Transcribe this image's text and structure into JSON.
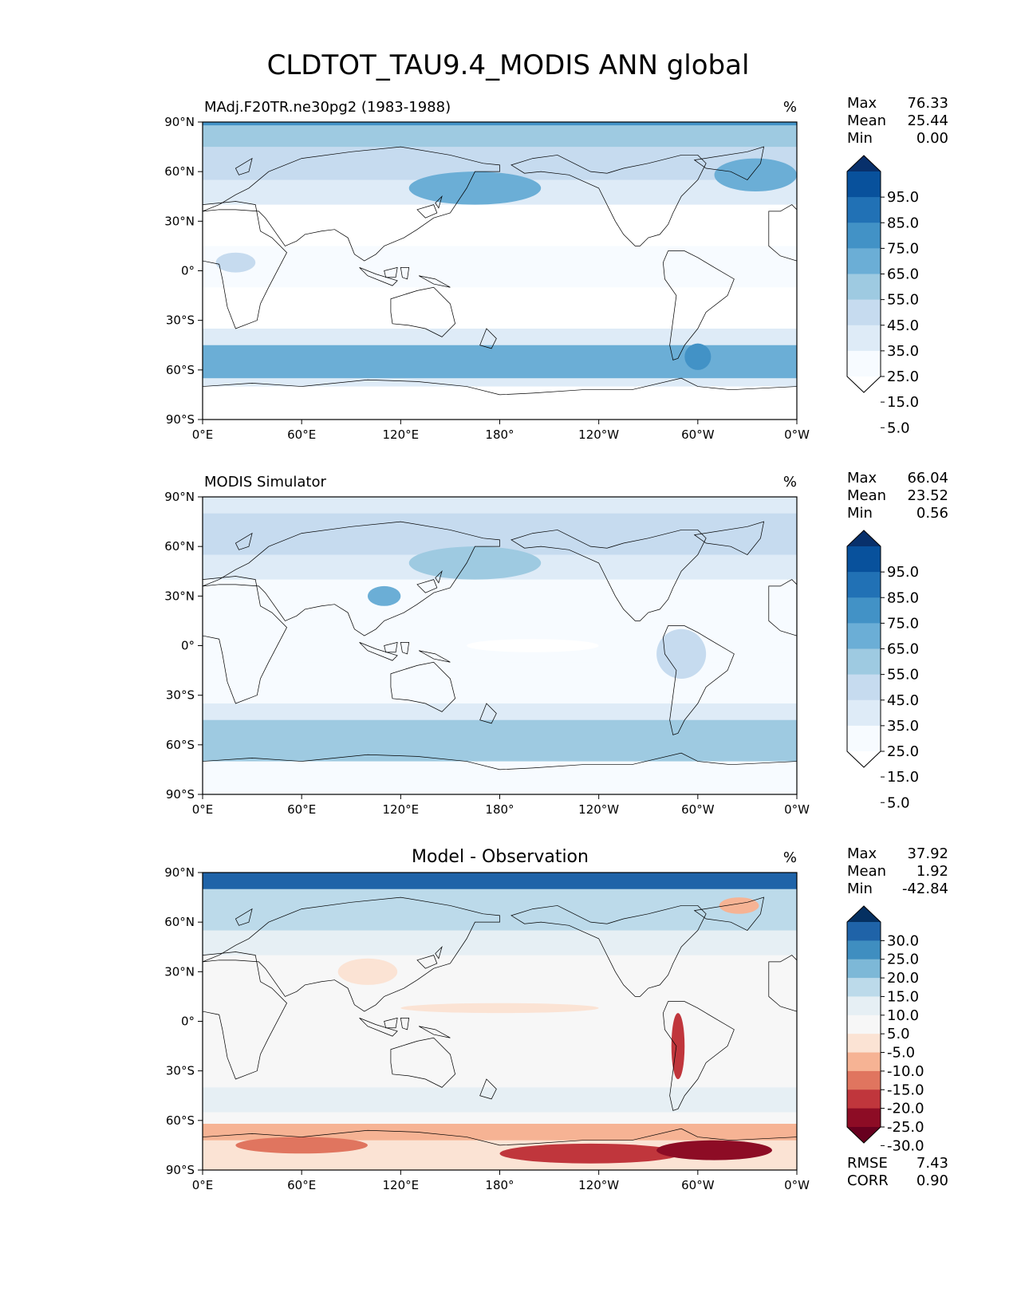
{
  "title": "CLDTOT_TAU9.4_MODIS ANN global",
  "chart_data": [
    {
      "type": "heatmap",
      "map": "global contour map",
      "title_left": "MAdj.F20TR.ne30pg2 (1983-1988)",
      "units": "%",
      "stats": [
        {
          "label": "Max",
          "value": "76.33"
        },
        {
          "label": "Mean",
          "value": "25.44"
        },
        {
          "label": "Min",
          "value": "0.00"
        }
      ],
      "colorbar": {
        "ticks": [
          "95.0",
          "85.0",
          "75.0",
          "65.0",
          "55.0",
          "45.0",
          "35.0",
          "25.0",
          "15.0",
          "5.0"
        ],
        "colors": [
          "#08306b",
          "#08519c",
          "#2171b5",
          "#4292c6",
          "#6baed6",
          "#9ecae1",
          "#c6dbef",
          "#deebf7",
          "#f7fbff",
          "#ffffff"
        ],
        "extend": "both"
      },
      "x_ticks": [
        "0°E",
        "60°E",
        "120°E",
        "180°",
        "120°W",
        "60°W",
        "0°W"
      ],
      "y_ticks": [
        "90°N",
        "60°N",
        "30°N",
        "0°",
        "30°S",
        "60°S",
        "90°S"
      ],
      "xlim": [
        0,
        360
      ],
      "ylim": [
        -90,
        90
      ],
      "features": [
        {
          "kind": "band",
          "lat": [
            88,
            90
          ],
          "value": 70
        },
        {
          "kind": "band",
          "lat": [
            75,
            88
          ],
          "value": 52
        },
        {
          "kind": "band",
          "lat": [
            55,
            75
          ],
          "value": 38
        },
        {
          "kind": "band",
          "lat": [
            40,
            55
          ],
          "value": 30
        },
        {
          "kind": "band",
          "lat": [
            15,
            40
          ],
          "value": 14
        },
        {
          "kind": "band",
          "lat": [
            -10,
            15
          ],
          "value": 20
        },
        {
          "kind": "band",
          "lat": [
            -35,
            -10
          ],
          "value": 12
        },
        {
          "kind": "band",
          "lat": [
            -45,
            -35
          ],
          "value": 25
        },
        {
          "kind": "band",
          "lat": [
            -65,
            -45
          ],
          "value": 55
        },
        {
          "kind": "band",
          "lat": [
            -70,
            -65
          ],
          "value": 25
        },
        {
          "kind": "band",
          "lat": [
            -90,
            -70
          ],
          "value": 5
        },
        {
          "kind": "blob",
          "lon": 165,
          "lat": 50,
          "rlon": 40,
          "rlat": 10,
          "value": 55
        },
        {
          "kind": "blob",
          "lon": 335,
          "lat": 58,
          "rlon": 25,
          "rlat": 10,
          "value": 60
        },
        {
          "kind": "blob",
          "lon": 300,
          "lat": -52,
          "rlon": 8,
          "rlat": 8,
          "value": 65
        },
        {
          "kind": "blob",
          "lon": 20,
          "lat": 5,
          "rlon": 12,
          "rlat": 6,
          "value": 40
        }
      ]
    },
    {
      "type": "heatmap",
      "map": "global contour map",
      "title_left": "MODIS Simulator",
      "units": "%",
      "stats": [
        {
          "label": "Max",
          "value": "66.04"
        },
        {
          "label": "Mean",
          "value": "23.52"
        },
        {
          "label": "Min",
          "value": "0.56"
        }
      ],
      "colorbar": {
        "ticks": [
          "95.0",
          "85.0",
          "75.0",
          "65.0",
          "55.0",
          "45.0",
          "35.0",
          "25.0",
          "15.0",
          "5.0"
        ],
        "colors": [
          "#08306b",
          "#08519c",
          "#2171b5",
          "#4292c6",
          "#6baed6",
          "#9ecae1",
          "#c6dbef",
          "#deebf7",
          "#f7fbff",
          "#ffffff"
        ],
        "extend": "both"
      },
      "x_ticks": [
        "0°E",
        "60°E",
        "120°E",
        "180°",
        "120°W",
        "60°W",
        "0°W"
      ],
      "y_ticks": [
        "90°N",
        "60°N",
        "30°N",
        "0°",
        "30°S",
        "60°S",
        "90°S"
      ],
      "xlim": [
        0,
        360
      ],
      "ylim": [
        -90,
        90
      ],
      "features": [
        {
          "kind": "band",
          "lat": [
            80,
            90
          ],
          "value": 30
        },
        {
          "kind": "band",
          "lat": [
            55,
            80
          ],
          "value": 38
        },
        {
          "kind": "band",
          "lat": [
            40,
            55
          ],
          "value": 33
        },
        {
          "kind": "band",
          "lat": [
            15,
            40
          ],
          "value": 18
        },
        {
          "kind": "band",
          "lat": [
            -10,
            15
          ],
          "value": 22
        },
        {
          "kind": "band",
          "lat": [
            -35,
            -10
          ],
          "value": 18
        },
        {
          "kind": "band",
          "lat": [
            -45,
            -35
          ],
          "value": 30
        },
        {
          "kind": "band",
          "lat": [
            -70,
            -45
          ],
          "value": 48
        },
        {
          "kind": "band",
          "lat": [
            -90,
            -70
          ],
          "value": 22
        },
        {
          "kind": "blob",
          "lon": 110,
          "lat": 30,
          "rlon": 10,
          "rlat": 6,
          "value": 55
        },
        {
          "kind": "blob",
          "lon": 165,
          "lat": 50,
          "rlon": 40,
          "rlat": 10,
          "value": 45
        },
        {
          "kind": "blob",
          "lon": 290,
          "lat": -5,
          "rlon": 15,
          "rlat": 15,
          "value": 40
        },
        {
          "kind": "blob",
          "lon": 200,
          "lat": 0,
          "rlon": 40,
          "rlat": 4,
          "value": 8
        }
      ]
    },
    {
      "type": "heatmap",
      "map": "global contour map",
      "title_center": "Model - Observation",
      "units": "%",
      "stats": [
        {
          "label": "Max",
          "value": "37.92"
        },
        {
          "label": "Mean",
          "value": "1.92"
        },
        {
          "label": "Min",
          "value": "-42.84"
        }
      ],
      "colorbar": {
        "ticks": [
          "30.0",
          "25.0",
          "20.0",
          "15.0",
          "10.0",
          "5.0",
          "-5.0",
          "-10.0",
          "-15.0",
          "-20.0",
          "-25.0",
          "-30.0"
        ],
        "colors": [
          "#053061",
          "#1f63a8",
          "#3f8ec0",
          "#7db8d7",
          "#bcdaea",
          "#e6eff4",
          "#f7f7f7",
          "#fbe3d4",
          "#f6b394",
          "#e0755f",
          "#c0363c",
          "#8d0c25",
          "#67001f"
        ],
        "extend": "both"
      },
      "x_ticks": [
        "0°E",
        "60°E",
        "120°E",
        "180°",
        "120°W",
        "60°W",
        "0°W"
      ],
      "y_ticks": [
        "90°N",
        "60°N",
        "30°N",
        "0°",
        "30°S",
        "60°S",
        "90°S"
      ],
      "xlim": [
        0,
        360
      ],
      "ylim": [
        -90,
        90
      ],
      "rmse": "7.43",
      "corr": "0.90",
      "features": [
        {
          "kind": "band",
          "lat": [
            80,
            90
          ],
          "value": 27
        },
        {
          "kind": "band",
          "lat": [
            55,
            80
          ],
          "value": 12
        },
        {
          "kind": "band",
          "lat": [
            40,
            55
          ],
          "value": 7
        },
        {
          "kind": "band",
          "lat": [
            -40,
            40
          ],
          "value": 0
        },
        {
          "kind": "band",
          "lat": [
            -55,
            -40
          ],
          "value": 8
        },
        {
          "kind": "band",
          "lat": [
            -62,
            -55
          ],
          "value": 2
        },
        {
          "kind": "band",
          "lat": [
            -72,
            -62
          ],
          "value": -14
        },
        {
          "kind": "band",
          "lat": [
            -90,
            -72
          ],
          "value": -7
        },
        {
          "kind": "blob",
          "lon": 235,
          "lat": -80,
          "rlon": 55,
          "rlat": 6,
          "value": -24
        },
        {
          "kind": "blob",
          "lon": 310,
          "lat": -78,
          "rlon": 35,
          "rlat": 6,
          "value": -26
        },
        {
          "kind": "blob",
          "lon": 60,
          "lat": -75,
          "rlon": 40,
          "rlat": 5,
          "value": -18
        },
        {
          "kind": "blob",
          "lon": 288,
          "lat": -15,
          "rlon": 4,
          "rlat": 20,
          "value": -24
        },
        {
          "kind": "blob",
          "lon": 100,
          "lat": 30,
          "rlon": 18,
          "rlat": 8,
          "value": -10
        },
        {
          "kind": "blob",
          "lon": 325,
          "lat": 70,
          "rlon": 12,
          "rlat": 5,
          "value": -12
        },
        {
          "kind": "blob",
          "lon": 180,
          "lat": 8,
          "rlon": 60,
          "rlat": 3,
          "value": -7
        }
      ]
    }
  ]
}
